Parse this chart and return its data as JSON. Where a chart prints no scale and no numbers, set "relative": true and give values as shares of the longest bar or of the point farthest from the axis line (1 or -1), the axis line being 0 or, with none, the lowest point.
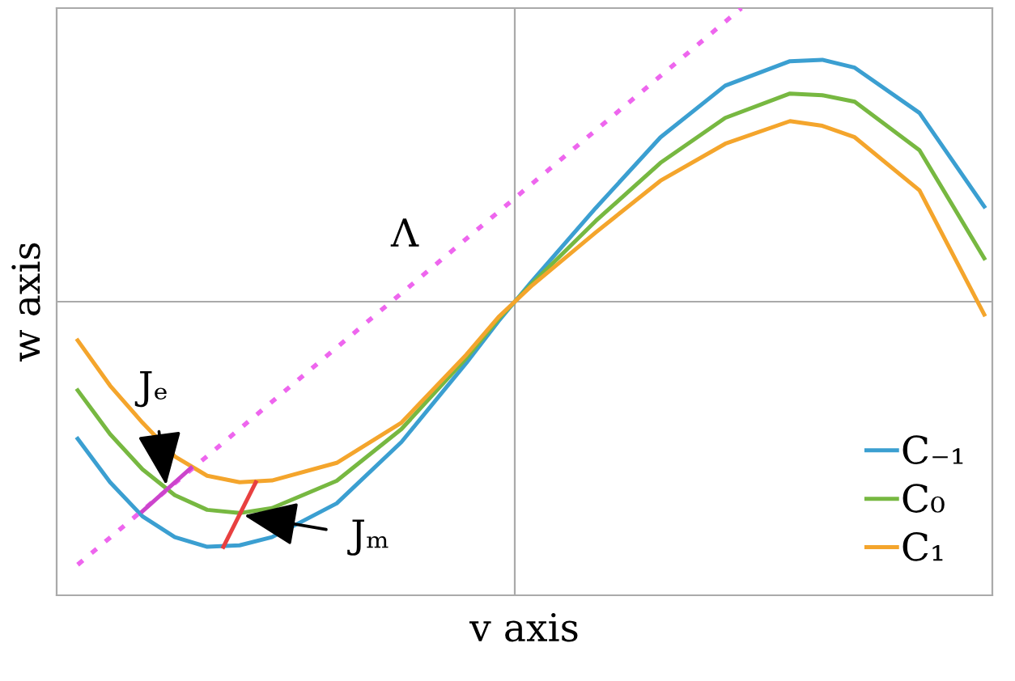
{
  "chart_data": {
    "type": "line",
    "relative": true,
    "xlabel": "v axis",
    "ylabel": "w axis",
    "legend": "bottom right",
    "marker": "none",
    "line_style": "solid",
    "categories": [
      null,
      null,
      null,
      null,
      null,
      null,
      null,
      null,
      null,
      null,
      null,
      null,
      null,
      null,
      null,
      null,
      null,
      null,
      null,
      null,
      null,
      null,
      null,
      null,
      null,
      null,
      null,
      null,
      null,
      null,
      null,
      null,
      null,
      null,
      null,
      null,
      null,
      null,
      null,
      null,
      null,
      null,
      null,
      null,
      null,
      null,
      null,
      null,
      null,
      null,
      null,
      null,
      null,
      null,
      null,
      null,
      null
    ],
    "series": [
      {
        "name": "C₋₁",
        "color": "#3b9fd1",
        "values": [
          -0.467,
          null,
          -0.615,
          null,
          -0.731,
          null,
          -0.802,
          null,
          -0.835,
          null,
          -0.83,
          null,
          -0.802,
          null,
          null,
          null,
          -0.687,
          null,
          null,
          null,
          -0.478,
          null,
          null,
          null,
          -0.209,
          null,
          -0.066,
          0,
          0.066,
          null,
          null,
          null,
          0.319,
          null,
          null,
          null,
          0.56,
          null,
          null,
          null,
          0.736,
          null,
          null,
          null,
          0.819,
          null,
          0.824,
          null,
          0.797,
          null,
          null,
          null,
          0.643,
          null,
          null,
          null,
          0.324
        ]
      },
      {
        "name": "C₀",
        "color": "#77b841",
        "values": [
          -0.302,
          null,
          -0.451,
          null,
          -0.571,
          null,
          -0.659,
          null,
          -0.709,
          null,
          -0.72,
          null,
          -0.703,
          null,
          null,
          null,
          -0.61,
          null,
          null,
          null,
          -0.434,
          null,
          null,
          null,
          -0.192,
          null,
          -0.058,
          0,
          0.058,
          null,
          null,
          null,
          0.275,
          null,
          null,
          null,
          0.473,
          null,
          null,
          null,
          0.626,
          null,
          null,
          null,
          0.709,
          null,
          0.703,
          null,
          0.681,
          null,
          null,
          null,
          0.516,
          null,
          null,
          null,
          0.148
        ]
      },
      {
        "name": "C₁",
        "color": "#f4a52c",
        "values": [
          -0.132,
          null,
          -0.286,
          null,
          -0.412,
          null,
          -0.527,
          null,
          -0.593,
          null,
          -0.615,
          null,
          -0.609,
          null,
          null,
          null,
          -0.549,
          null,
          null,
          null,
          -0.412,
          null,
          null,
          null,
          -0.181,
          null,
          -0.052,
          0,
          0.052,
          null,
          null,
          null,
          0.236,
          null,
          null,
          null,
          0.412,
          null,
          null,
          null,
          0.538,
          null,
          null,
          null,
          0.615,
          null,
          0.599,
          null,
          0.56,
          null,
          null,
          null,
          0.379,
          null,
          null,
          null,
          -0.044
        ]
      },
      {
        "color": "#ee66ee",
        "line_style": "dotted",
        "values": [
          -0.896,
          null,
          null,
          null,
          null,
          null,
          null,
          null,
          null,
          null,
          null,
          null,
          null,
          null,
          null,
          null,
          null,
          null,
          null,
          null,
          null,
          null,
          null,
          null,
          null,
          null,
          null,
          null,
          null,
          null,
          null,
          null,
          null,
          null,
          null,
          null,
          null,
          null,
          null,
          null,
          null,
          1.0,
          null,
          null,
          null,
          null,
          null,
          null,
          null,
          null,
          null,
          null,
          null,
          null,
          null,
          null,
          null
        ]
      },
      {
        "color": "#cc44cc",
        "values": [
          null,
          null,
          null,
          null,
          -0.714,
          null,
          null,
          -0.566,
          null,
          null,
          null,
          null,
          null,
          null,
          null,
          null,
          null,
          null,
          null,
          null,
          null,
          null,
          null,
          null,
          null,
          null,
          null,
          null,
          null,
          null,
          null,
          null,
          null,
          null,
          null,
          null,
          null,
          null,
          null,
          null,
          null,
          null,
          null,
          null,
          null,
          null,
          null,
          null,
          null,
          null,
          null,
          null,
          null,
          null,
          null,
          null,
          null
        ]
      },
      {
        "color": "#e84040",
        "values": [
          null,
          null,
          null,
          null,
          null,
          null,
          null,
          null,
          null,
          -0.835,
          null,
          -0.615,
          null,
          null,
          null,
          null,
          null,
          null,
          null,
          null,
          null,
          null,
          null,
          null,
          null,
          null,
          null,
          null,
          null,
          null,
          null,
          null,
          null,
          null,
          null,
          null,
          null,
          null,
          null,
          null,
          null,
          null,
          null,
          null,
          null,
          null,
          null,
          null,
          null,
          null,
          null,
          null,
          null,
          null,
          null,
          null,
          null
        ]
      }
    ],
    "ref_lines": [
      {
        "axis": "y",
        "value": 0,
        "color": "#aaaaaa"
      }
    ],
    "annotations": [
      "Λ",
      "Jₑ",
      "Jₘ"
    ]
  }
}
